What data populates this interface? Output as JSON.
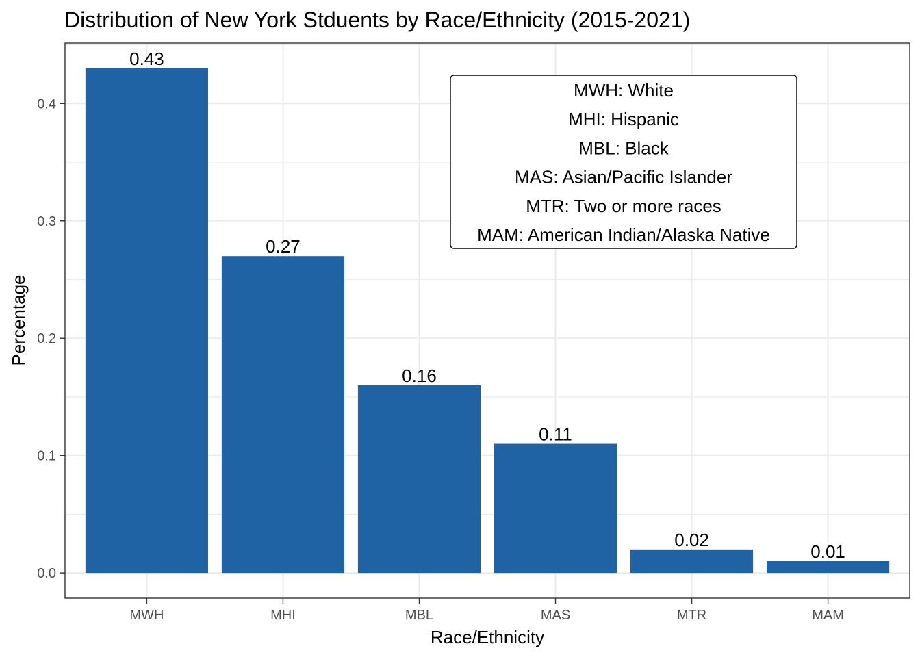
{
  "chart_data": {
    "type": "bar",
    "title": "Distribution of New York Stduents by Race/Ethnicity (2015-2021)",
    "xlabel": "Race/Ethnicity",
    "ylabel": "Percentage",
    "categories": [
      "MWH",
      "MHI",
      "MBL",
      "MAS",
      "MTR",
      "MAM"
    ],
    "values": [
      0.43,
      0.27,
      0.16,
      0.11,
      0.02,
      0.01
    ],
    "data_labels": [
      "0.43",
      "0.27",
      "0.16",
      "0.11",
      "0.02",
      "0.01"
    ],
    "y_ticks": [
      0.0,
      0.1,
      0.2,
      0.3,
      0.4
    ],
    "y_tick_labels": [
      "0.0",
      "0.1",
      "0.2",
      "0.3",
      "0.4"
    ],
    "ylim": [
      -0.0215,
      0.4515
    ],
    "grid": true,
    "bar_color": "#1f63a5",
    "legend_placement": "top-right",
    "legend_lines": [
      "MWH: White",
      "MHI: Hispanic",
      "MBL: Black",
      "MAS: Asian/Pacific Islander",
      "MTR: Two or more races",
      "MAM: American Indian/Alaska Native"
    ]
  }
}
